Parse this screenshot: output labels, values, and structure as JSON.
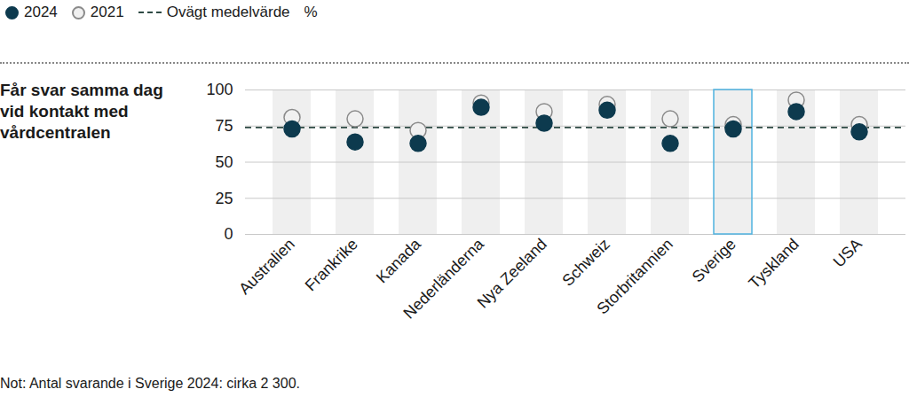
{
  "chart_data": {
    "type": "dot",
    "title": "Får svar samma dag vid kontakt med vårdcentralen",
    "unit": "%",
    "note": "Not: Antal svarande i Sverige 2024: cirka 2 300.",
    "categories": [
      "Australien",
      "Frankrike",
      "Kanada",
      "Nederländerna",
      "Nya Zeeland",
      "Schweiz",
      "Storbritannien",
      "Sverige",
      "Tyskland",
      "USA"
    ],
    "series": [
      {
        "name": "2021",
        "color": "#f0f0f0",
        "marker": "hollow",
        "values": [
          81,
          80,
          72,
          91,
          85,
          90,
          80,
          76,
          93,
          76
        ]
      },
      {
        "name": "2024",
        "color": "#0d3a4e",
        "marker": "filled",
        "values": [
          73,
          64,
          63,
          88,
          77,
          86,
          63,
          73,
          85,
          71
        ]
      }
    ],
    "reference_line": {
      "value": 74,
      "label": "Ovägt medelvärde",
      "color": "#2e4a44",
      "line_style": "dashed"
    },
    "highlight": "Sverige",
    "ylim": [
      0,
      100
    ],
    "yticks": [
      0,
      25,
      50,
      75,
      100
    ],
    "grid": true
  }
}
